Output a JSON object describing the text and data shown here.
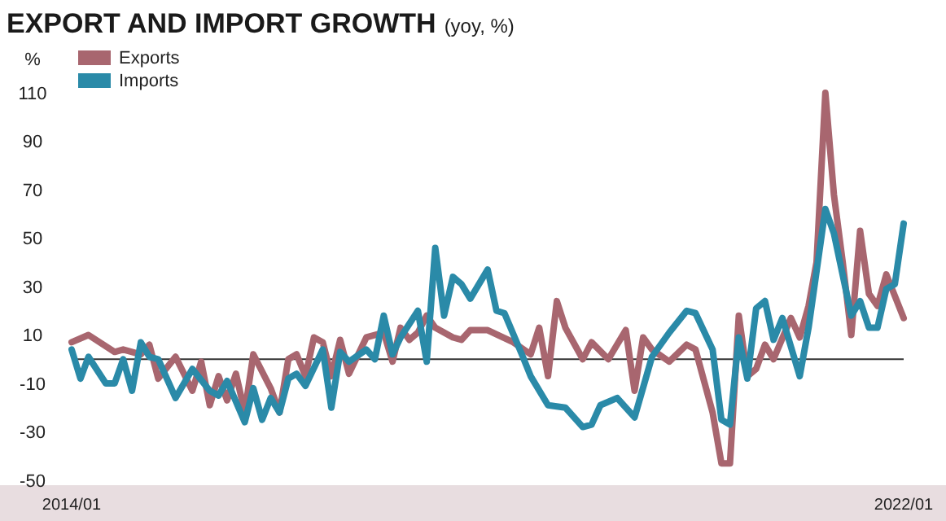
{
  "chart_data": {
    "type": "line",
    "title": "EXPORT AND IMPORT GROWTH",
    "subtitle": "(yoy, %)",
    "ylabel": "%",
    "xlim": [
      "2014-01",
      "2022-01"
    ],
    "xticks": [
      {
        "value": "2014-01",
        "label": "2014/01"
      },
      {
        "value": "2022-01",
        "label": "2022/01"
      }
    ],
    "ylim": [
      -50,
      110
    ],
    "yticks": [
      -50,
      -30,
      -10,
      10,
      30,
      50,
      70,
      90,
      110
    ],
    "grid": false,
    "legend": "top left",
    "line_style": "solid",
    "marker": "none",
    "ref_lines": [
      {
        "axis": "y",
        "value": 0,
        "label": null,
        "color": "#333333"
      }
    ],
    "series": [
      {
        "name": "Exports",
        "color": "#a8666f",
        "x": [
          "2014-01",
          "2014-03",
          "2014-06",
          "2014-07",
          "2014-09",
          "2014-10",
          "2014-11",
          "2015-01",
          "2015-03",
          "2015-04",
          "2015-05",
          "2015-06",
          "2015-07",
          "2015-08",
          "2015-09",
          "2015-10",
          "2015-12",
          "2016-01",
          "2016-02",
          "2016-03",
          "2016-04",
          "2016-05",
          "2016-06",
          "2016-07",
          "2016-08",
          "2016-09",
          "2016-11",
          "2017-01",
          "2017-02",
          "2017-03",
          "2017-04",
          "2017-05",
          "2017-06",
          "2017-07",
          "2017-09",
          "2017-10",
          "2017-11",
          "2018-01",
          "2018-04",
          "2018-06",
          "2018-07",
          "2018-08",
          "2018-09",
          "2018-10",
          "2018-12",
          "2019-01",
          "2019-03",
          "2019-05",
          "2019-06",
          "2019-07",
          "2019-08",
          "2019-10",
          "2019-12",
          "2020-01",
          "2020-03",
          "2020-04",
          "2020-05",
          "2020-06",
          "2020-07",
          "2020-08",
          "2020-09",
          "2020-10",
          "2020-12",
          "2021-01",
          "2021-02",
          "2021-03",
          "2021-04",
          "2021-05",
          "2021-06",
          "2021-07",
          "2021-08",
          "2021-09",
          "2021-10",
          "2021-11",
          "2022-01"
        ],
        "values": [
          7,
          10,
          3,
          4,
          2,
          6,
          -8,
          1,
          -13,
          -1,
          -19,
          -7,
          -17,
          -6,
          -22,
          2,
          -12,
          -22,
          0,
          2,
          -7,
          9,
          7,
          -7,
          8,
          -6,
          9,
          11,
          -1,
          13,
          8,
          11,
          18,
          13,
          9,
          8,
          12,
          12,
          7,
          2,
          13,
          -7,
          24,
          13,
          0,
          7,
          0,
          12,
          -13,
          9,
          4,
          -1,
          6,
          4,
          -22,
          -43,
          -43,
          18,
          -7,
          -4,
          6,
          0,
          17,
          9,
          22,
          40,
          110,
          68,
          40,
          10,
          53,
          27,
          22,
          35,
          17
        ]
      },
      {
        "name": "Imports",
        "color": "#2a8aa8",
        "x": [
          "2014-01",
          "2014-02",
          "2014-03",
          "2014-05",
          "2014-06",
          "2014-07",
          "2014-08",
          "2014-09",
          "2014-10",
          "2014-11",
          "2015-01",
          "2015-03",
          "2015-05",
          "2015-06",
          "2015-07",
          "2015-09",
          "2015-10",
          "2015-11",
          "2015-12",
          "2016-01",
          "2016-02",
          "2016-03",
          "2016-04",
          "2016-06",
          "2016-07",
          "2016-08",
          "2016-09",
          "2016-11",
          "2016-12",
          "2017-01",
          "2017-02",
          "2017-03",
          "2017-05",
          "2017-06",
          "2017-07",
          "2017-08",
          "2017-09",
          "2017-10",
          "2017-11",
          "2018-01",
          "2018-02",
          "2018-03",
          "2018-05",
          "2018-06",
          "2018-08",
          "2018-10",
          "2018-12",
          "2019-01",
          "2019-02",
          "2019-04",
          "2019-06",
          "2019-08",
          "2019-10",
          "2019-12",
          "2020-01",
          "2020-03",
          "2020-04",
          "2020-05",
          "2020-06",
          "2020-07",
          "2020-08",
          "2020-09",
          "2020-10",
          "2020-11",
          "2021-01",
          "2021-02",
          "2021-04",
          "2021-05",
          "2021-07",
          "2021-08",
          "2021-09",
          "2021-10",
          "2021-11",
          "2021-12",
          "2022-01"
        ],
        "values": [
          4,
          -8,
          1,
          -10,
          -10,
          0,
          -13,
          7,
          1,
          0,
          -16,
          -4,
          -13,
          -15,
          -9,
          -26,
          -12,
          -25,
          -16,
          -22,
          -8,
          -6,
          -11,
          4,
          -20,
          3,
          -1,
          4,
          0,
          18,
          2,
          9,
          20,
          -1,
          46,
          18,
          34,
          31,
          25,
          37,
          20,
          19,
          2,
          -7,
          -19,
          -20,
          -28,
          -27,
          -19,
          -16,
          -24,
          1,
          11,
          20,
          19,
          4,
          -25,
          -27,
          9,
          -8,
          21,
          24,
          8,
          17,
          -7,
          13,
          62,
          52,
          18,
          24,
          13,
          13,
          29,
          31,
          56
        ]
      }
    ]
  }
}
